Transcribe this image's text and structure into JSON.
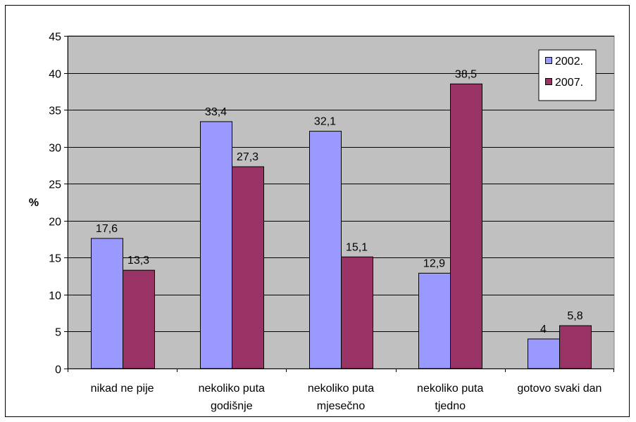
{
  "chart_data": {
    "type": "bar",
    "title": "",
    "xlabel": "",
    "ylabel": "%",
    "ylim": [
      0,
      45
    ],
    "yticks": [
      0,
      5,
      10,
      15,
      20,
      25,
      30,
      35,
      40,
      45
    ],
    "grid": true,
    "legend_position": "top-right",
    "categories": [
      [
        "nikad ne pije"
      ],
      [
        "nekoliko puta",
        "godišnje"
      ],
      [
        "nekoliko puta",
        "mjesečno"
      ],
      [
        "nekoliko puta",
        "tjedno"
      ],
      [
        "gotovo svaki dan"
      ]
    ],
    "series": [
      {
        "name": "2002.",
        "values": [
          17.6,
          33.4,
          32.1,
          12.9,
          4
        ],
        "labels": [
          "17,6",
          "33,4",
          "32,1",
          "12,9",
          "4"
        ],
        "color": "#9999ff"
      },
      {
        "name": "2007.",
        "values": [
          13.3,
          27.3,
          15.1,
          38.5,
          5.8
        ],
        "labels": [
          "13,3",
          "27,3",
          "15,1",
          "38,5",
          "5,8"
        ],
        "color": "#993366"
      }
    ],
    "plot_background": "#c0c0c0"
  }
}
